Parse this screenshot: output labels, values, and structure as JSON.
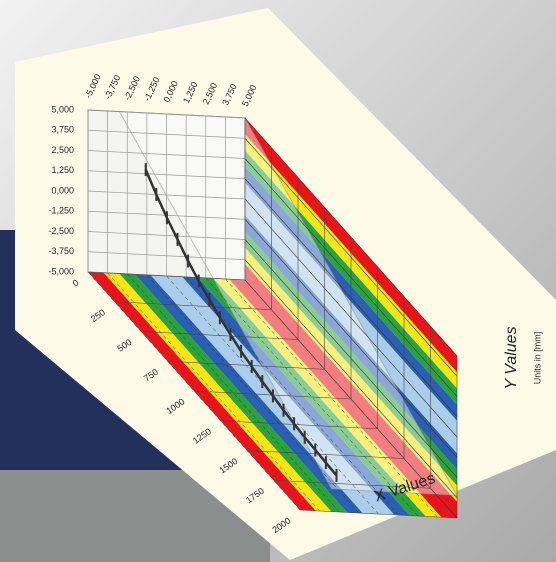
{
  "chart_data": {
    "type": "line3d",
    "x_label": "X Values",
    "y_label": "Y Values",
    "y_sublabel": "Units in [mm]",
    "xlim": [
      0,
      2000
    ],
    "xticks": [
      0,
      250,
      500,
      750,
      1000,
      1250,
      1500,
      1750,
      2000
    ],
    "ylim": [
      -5,
      5
    ],
    "yticks": [
      {
        "value": -5,
        "label": "-5,000"
      },
      {
        "value": -3.75,
        "label": "-3,750"
      },
      {
        "value": -2.5,
        "label": "-2,500"
      },
      {
        "value": -1.25,
        "label": "-1,250"
      },
      {
        "value": 0,
        "label": "0,000"
      },
      {
        "value": 1.25,
        "label": "1,250"
      },
      {
        "value": 2.5,
        "label": "2,500"
      },
      {
        "value": 3.75,
        "label": "3,750"
      },
      {
        "value": 5,
        "label": "5,000"
      }
    ],
    "zlim": [
      -5,
      5
    ],
    "zticks": [
      {
        "value": -5,
        "label": "-5,000"
      },
      {
        "value": -3.75,
        "label": "-3,750"
      },
      {
        "value": -2.5,
        "label": "-2,500"
      },
      {
        "value": -1.25,
        "label": "-1,250"
      },
      {
        "value": 0,
        "label": "0,000"
      },
      {
        "value": 1.25,
        "label": "1,250"
      },
      {
        "value": 2.5,
        "label": "2,500"
      },
      {
        "value": 3.75,
        "label": "3,750"
      },
      {
        "value": 5,
        "label": "5,000"
      }
    ],
    "grid": true,
    "band_colors": [
      "#e8141c",
      "#f5e614",
      "#2aa33c",
      "#2a5fb4",
      "#a9cdea"
    ],
    "series": [
      {
        "name": "Y Values",
        "color": "#333333",
        "x": [
          100,
          200,
          300,
          400,
          500,
          600,
          700,
          800,
          900,
          1000,
          1100,
          1200,
          1300,
          1400,
          1500,
          1600,
          1700,
          1800,
          1900
        ],
        "values": [
          2.2,
          1.4,
          0.7,
          0.1,
          -0.5,
          -1.0,
          -1.4,
          -1.8,
          -2.1,
          -2.4,
          -2.6,
          -2.8,
          -2.95,
          -3.1,
          -3.2,
          -3.3,
          -3.35,
          -3.4,
          -3.45
        ],
        "errors": [
          0.4,
          0.4,
          0.4,
          0.4,
          0.4,
          0.4,
          0.4,
          0.4,
          0.4,
          0.4,
          0.4,
          0.4,
          0.4,
          0.4,
          0.4,
          0.4,
          0.4,
          0.4,
          0.4
        ]
      }
    ]
  }
}
